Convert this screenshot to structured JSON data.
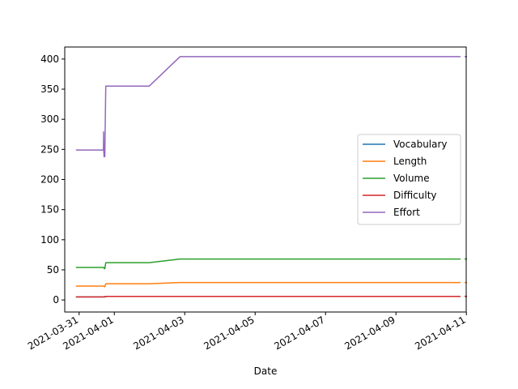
{
  "chart_data": {
    "type": "line",
    "title": "",
    "xlabel": "Date",
    "ylabel": "",
    "xlim": [
      "2021-03-30 14:12",
      "2021-04-10 23:53"
    ],
    "ylim": [
      -20,
      420
    ],
    "grid": false,
    "legend_position": "center-right",
    "x_ticks": [
      "2021-03-31",
      "2021-04-01",
      "2021-04-03",
      "2021-04-05",
      "2021-04-07",
      "2021-04-09",
      "2021-04-11"
    ],
    "y_ticks": [
      0,
      50,
      100,
      150,
      200,
      250,
      300,
      350,
      400
    ],
    "series": [
      {
        "name": "Vocabulary",
        "color": "#1f77b4",
        "x": [
          "2021-03-30 21:50",
          "2021-03-31 16:48",
          "2021-03-31 17:20",
          "2021-03-31 19:12",
          "2021-04-01 23:45",
          "2021-04-02 20:48",
          "2021-04-10 20:00"
        ],
        "y": [
          5,
          5,
          5,
          6,
          6,
          6,
          6
        ]
      },
      {
        "name": "Length",
        "color": "#ff7f0e",
        "x": [
          "2021-03-30 21:50",
          "2021-03-31 16:48",
          "2021-03-31 17:10",
          "2021-03-31 17:30",
          "2021-03-31 18:10",
          "2021-04-01 23:45",
          "2021-04-02 20:48",
          "2021-04-10 20:00"
        ],
        "y": [
          23,
          23,
          22,
          22,
          27,
          27,
          29,
          29
        ]
      },
      {
        "name": "Volume",
        "color": "#2ca02c",
        "x": [
          "2021-03-30 21:50",
          "2021-03-31 16:48",
          "2021-03-31 17:10",
          "2021-03-31 17:30",
          "2021-03-31 18:10",
          "2021-04-01 23:45",
          "2021-04-02 20:48",
          "2021-04-10 20:00"
        ],
        "y": [
          54,
          54,
          52,
          52,
          62,
          62,
          68,
          68
        ]
      },
      {
        "name": "Difficulty",
        "color": "#d62728",
        "x": [
          "2021-03-30 21:50",
          "2021-03-31 16:48",
          "2021-03-31 18:10",
          "2021-04-01 23:45",
          "2021-04-02 20:48",
          "2021-04-10 20:00"
        ],
        "y": [
          5,
          5,
          6,
          6,
          6,
          6
        ]
      },
      {
        "name": "Effort",
        "color": "#9467bd",
        "x": [
          "2021-03-30 21:50",
          "2021-03-31 16:35",
          "2021-03-31 16:40",
          "2021-03-31 16:48",
          "2021-03-31 17:00",
          "2021-03-31 17:30",
          "2021-03-31 17:50",
          "2021-03-31 18:10",
          "2021-04-01 23:45",
          "2021-04-02 20:48",
          "2021-04-10 20:00"
        ],
        "y": [
          249,
          249,
          279,
          249,
          238,
          238,
          300,
          355,
          355,
          404,
          404
        ]
      }
    ]
  }
}
